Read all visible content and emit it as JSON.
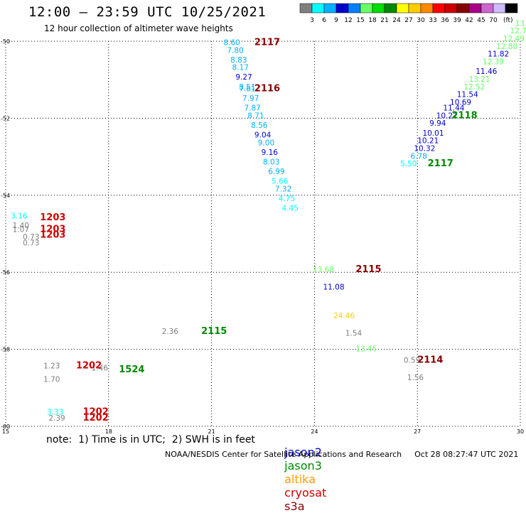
{
  "header": {
    "title": "12:00 – 23:59 UTC 10/25/2021",
    "subtitle": "12 hour collection of altimeter wave heights"
  },
  "colorbar": {
    "colors": [
      "#7f7f7f",
      "#00ffff",
      "#00b0ff",
      "#0000cc",
      "#0080ff",
      "#66ff66",
      "#00dd00",
      "#008800",
      "#ffff00",
      "#ffcc00",
      "#ff8800",
      "#ff0000",
      "#cc0000",
      "#880000",
      "#aa0088",
      "#cc66cc",
      "#ccbbff",
      "#000000"
    ],
    "labels": [
      "3",
      "6",
      "9",
      "12",
      "15",
      "18",
      "21",
      "24",
      "27",
      "30",
      "33",
      "36",
      "39",
      "42",
      "45",
      "70"
    ],
    "unit": "(ft)"
  },
  "note": "note:  1) Time is in UTC;  2) SWH is in feet",
  "satellites": [
    {
      "name": "jason2",
      "color": "#0000cc"
    },
    {
      "name": "jason3",
      "color": "#008800"
    },
    {
      "name": "altika",
      "color": "#ff9900"
    },
    {
      "name": "cryosat",
      "color": "#cc0000"
    },
    {
      "name": "s3a",
      "color": "#880000"
    }
  ],
  "footer": {
    "credit": "NOAA/NESDIS Center for Satellite Applications and Research",
    "timestamp": "Oct 28 08:27:47 UTC 2021"
  },
  "chart_data": {
    "type": "scatter",
    "xlim": [
      15,
      30
    ],
    "ylim": [
      -60,
      -50
    ],
    "xticks": [
      "15",
      "18",
      "21",
      "24",
      "27",
      "30"
    ],
    "yticks": [
      "-50",
      "-52",
      "-54",
      "-56",
      "-58",
      "-60"
    ],
    "grid": true,
    "points": [
      {
        "x": 21.35,
        "y": -50.1,
        "t": "8.60",
        "c": "#00b0ff"
      },
      {
        "x": 21.45,
        "y": -50.3,
        "t": "7.80",
        "c": "#00b0ff"
      },
      {
        "x": 21.55,
        "y": -50.55,
        "t": "8.83",
        "c": "#00b0ff"
      },
      {
        "x": 21.6,
        "y": -50.75,
        "t": "8.17",
        "c": "#00b0ff"
      },
      {
        "x": 21.7,
        "y": -51.0,
        "t": "9.27",
        "c": "#0000cc"
      },
      {
        "x": 21.8,
        "y": -51.25,
        "t": "8.51",
        "c": "#00b0ff"
      },
      {
        "x": 21.8,
        "y": -51.3,
        "t": "7.61",
        "c": "#00b0ff"
      },
      {
        "x": 21.9,
        "y": -51.55,
        "t": "7.97",
        "c": "#00b0ff"
      },
      {
        "x": 21.95,
        "y": -51.8,
        "t": "7.87",
        "c": "#00b0ff"
      },
      {
        "x": 22.05,
        "y": -52.0,
        "t": "8.71",
        "c": "#00b0ff"
      },
      {
        "x": 22.15,
        "y": -52.25,
        "t": "8.56",
        "c": "#00b0ff"
      },
      {
        "x": 22.25,
        "y": -52.5,
        "t": "9.04",
        "c": "#0000cc"
      },
      {
        "x": 22.35,
        "y": -52.7,
        "t": "9.00",
        "c": "#00b0ff"
      },
      {
        "x": 22.45,
        "y": -52.95,
        "t": "9.16",
        "c": "#0000cc"
      },
      {
        "x": 22.5,
        "y": -53.2,
        "t": "8.03",
        "c": "#00b0ff"
      },
      {
        "x": 22.65,
        "y": -53.45,
        "t": "6.99",
        "c": "#00b0ff"
      },
      {
        "x": 22.75,
        "y": -53.7,
        "t": "5.66",
        "c": "#00ffff"
      },
      {
        "x": 22.85,
        "y": -53.9,
        "t": "7.32",
        "c": "#00b0ff"
      },
      {
        "x": 22.95,
        "y": -54.15,
        "t": "4.75",
        "c": "#00ffff"
      },
      {
        "x": 23.05,
        "y": -54.4,
        "t": "4.45",
        "c": "#00ffff"
      },
      {
        "x": 26.5,
        "y": -53.25,
        "t": "5.50",
        "c": "#00ffff"
      },
      {
        "x": 26.8,
        "y": -53.05,
        "t": "6.78",
        "c": "#00b0ff"
      },
      {
        "x": 26.9,
        "y": -52.85,
        "t": "10.32",
        "c": "#0000cc"
      },
      {
        "x": 27.0,
        "y": -52.65,
        "t": "10.21",
        "c": "#0000cc"
      },
      {
        "x": 27.15,
        "y": -52.45,
        "t": "10.01",
        "c": "#0000cc"
      },
      {
        "x": 27.35,
        "y": -52.2,
        "t": "9.94",
        "c": "#0000cc"
      },
      {
        "x": 27.55,
        "y": -52.0,
        "t": "10.22",
        "c": "#0000cc"
      },
      {
        "x": 27.75,
        "y": -51.8,
        "t": "11.44",
        "c": "#0000cc"
      },
      {
        "x": 27.95,
        "y": -51.65,
        "t": "10.69",
        "c": "#0000cc"
      },
      {
        "x": 28.15,
        "y": -51.45,
        "t": "11.54",
        "c": "#0000cc"
      },
      {
        "x": 28.35,
        "y": -51.25,
        "t": "12.52",
        "c": "#66ff66"
      },
      {
        "x": 28.5,
        "y": -51.05,
        "t": "13.21",
        "c": "#66ff66"
      },
      {
        "x": 28.7,
        "y": -50.85,
        "t": "11.46",
        "c": "#0000cc"
      },
      {
        "x": 28.9,
        "y": -50.6,
        "t": "12.39",
        "c": "#66ff66"
      },
      {
        "x": 29.05,
        "y": -50.4,
        "t": "11.82",
        "c": "#0000cc"
      },
      {
        "x": 29.3,
        "y": -50.2,
        "t": "12.80",
        "c": "#66ff66"
      },
      {
        "x": 29.5,
        "y": -50.0,
        "t": "12.49",
        "c": "#66ff66"
      },
      {
        "x": 29.7,
        "y": -49.8,
        "t": "12.75",
        "c": "#66ff66"
      },
      {
        "x": 29.85,
        "y": -49.6,
        "t": "13.7",
        "c": "#66ff66"
      },
      {
        "x": 15.15,
        "y": -54.6,
        "t": "3.16",
        "c": "#00ffff"
      },
      {
        "x": 15.2,
        "y": -54.85,
        "t": "1.40",
        "c": "#7f7f7f"
      },
      {
        "x": 15.2,
        "y": -54.95,
        "t": "1.07",
        "c": "#7f7f7f"
      },
      {
        "x": 15.5,
        "y": -55.15,
        "t": "0.73",
        "c": "#7f7f7f"
      },
      {
        "x": 15.5,
        "y": -55.3,
        "t": "0.73",
        "c": "#7f7f7f"
      },
      {
        "x": 23.95,
        "y": -56.0,
        "t": "13.68",
        "c": "#66ff66"
      },
      {
        "x": 24.25,
        "y": -56.45,
        "t": "11.08",
        "c": "#0000cc"
      },
      {
        "x": 24.55,
        "y": -57.2,
        "t": "24.46",
        "c": "#ffcc00"
      },
      {
        "x": 24.9,
        "y": -57.65,
        "t": "1.54",
        "c": "#7f7f7f"
      },
      {
        "x": 19.55,
        "y": -57.6,
        "t": "2.36",
        "c": "#7f7f7f"
      },
      {
        "x": 25.2,
        "y": -58.05,
        "t": "13.45",
        "c": "#66ff66"
      },
      {
        "x": 26.6,
        "y": -58.35,
        "t": "0.59",
        "c": "#7f7f7f"
      },
      {
        "x": 26.7,
        "y": -58.8,
        "t": "1.56",
        "c": "#7f7f7f"
      },
      {
        "x": 16.1,
        "y": -58.5,
        "t": "1.23",
        "c": "#7f7f7f"
      },
      {
        "x": 16.1,
        "y": -58.85,
        "t": "1.70",
        "c": "#7f7f7f"
      },
      {
        "x": 17.5,
        "y": -58.55,
        "t": "1.46",
        "c": "#7f7f7f"
      },
      {
        "x": 16.2,
        "y": -59.7,
        "t": "3.33",
        "c": "#00ffff"
      },
      {
        "x": 16.25,
        "y": -59.85,
        "t": "2.39",
        "c": "#7f7f7f"
      }
    ],
    "labels": [
      {
        "x": 22.25,
        "y": -50.1,
        "t": "2117",
        "c": "#880000"
      },
      {
        "x": 22.25,
        "y": -51.3,
        "t": "2116",
        "c": "#880000"
      },
      {
        "x": 28.0,
        "y": -52.0,
        "t": "2118",
        "c": "#008800"
      },
      {
        "x": 27.3,
        "y": -53.25,
        "t": "2117",
        "c": "#008800"
      },
      {
        "x": 16.0,
        "y": -54.65,
        "t": "1203",
        "c": "#cc0000"
      },
      {
        "x": 16.0,
        "y": -54.95,
        "t": "1203",
        "c": "#cc0000"
      },
      {
        "x": 16.0,
        "y": -55.1,
        "t": "1203",
        "c": "#cc0000"
      },
      {
        "x": 25.2,
        "y": -56.0,
        "t": "2115",
        "c": "#880000"
      },
      {
        "x": 20.7,
        "y": -57.6,
        "t": "2115",
        "c": "#008800"
      },
      {
        "x": 17.05,
        "y": -58.5,
        "t": "1202",
        "c": "#cc0000"
      },
      {
        "x": 18.3,
        "y": -58.6,
        "t": "1524",
        "c": "#008800"
      },
      {
        "x": 27.0,
        "y": -58.35,
        "t": "2114",
        "c": "#880000"
      },
      {
        "x": 17.25,
        "y": -59.7,
        "t": "1202",
        "c": "#cc0000"
      },
      {
        "x": 17.25,
        "y": -59.85,
        "t": "1202",
        "c": "#cc0000"
      }
    ]
  }
}
